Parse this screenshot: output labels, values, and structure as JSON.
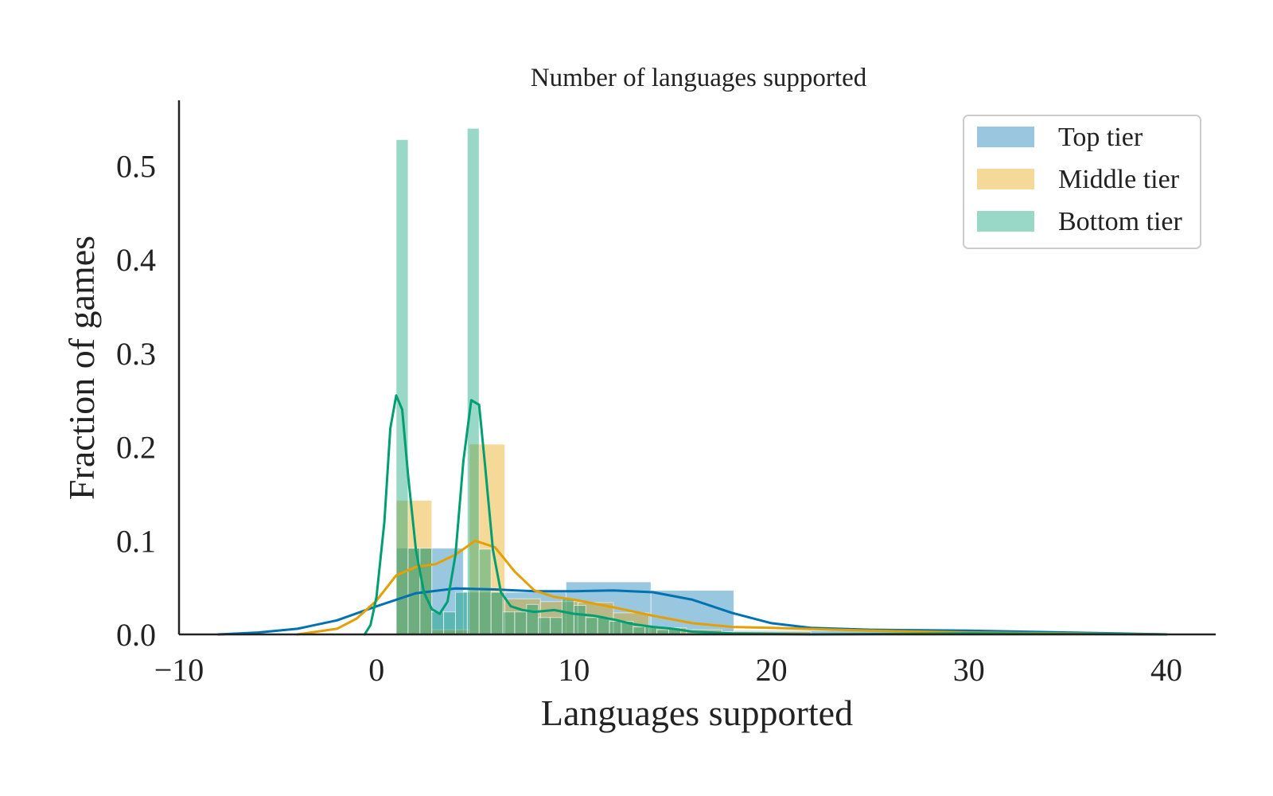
{
  "chart_data": {
    "type": "bar",
    "title": "Number of languages supported",
    "xlabel": "Languages supported",
    "ylabel": "Fraction of games",
    "xlim": [
      -10,
      42.5
    ],
    "ylim": [
      0,
      0.57
    ],
    "xticks": [
      -10,
      0,
      10,
      20,
      30,
      40
    ],
    "xtick_labels": [
      "−10",
      "0",
      "10",
      "20",
      "30",
      "40"
    ],
    "yticks": [
      0.0,
      0.1,
      0.2,
      0.3,
      0.4,
      0.5
    ],
    "ytick_labels": [
      "0.0",
      "0.1",
      "0.2",
      "0.3",
      "0.4",
      "0.5"
    ],
    "grid": false,
    "legend_position": "top-right",
    "series": [
      {
        "name": "Top tier",
        "color": "#0072b2",
        "histogram": [
          {
            "x0": 1.0,
            "x1": 4.4,
            "y": 0.092
          },
          {
            "x0": 4.4,
            "x1": 9.6,
            "y": 0.045
          },
          {
            "x0": 9.6,
            "x1": 13.9,
            "y": 0.056
          },
          {
            "x0": 13.9,
            "x1": 18.1,
            "y": 0.047
          },
          {
            "x0": 18.1,
            "x1": 31.0,
            "y": 0.004
          }
        ],
        "kde": [
          [
            -8,
            0.0
          ],
          [
            -6,
            0.002
          ],
          [
            -4,
            0.006
          ],
          [
            -2,
            0.015
          ],
          [
            0,
            0.03
          ],
          [
            2,
            0.044
          ],
          [
            4,
            0.049
          ],
          [
            6,
            0.048
          ],
          [
            8,
            0.046
          ],
          [
            10,
            0.046
          ],
          [
            12,
            0.047
          ],
          [
            14,
            0.045
          ],
          [
            16,
            0.037
          ],
          [
            18,
            0.023
          ],
          [
            20,
            0.012
          ],
          [
            22,
            0.007
          ],
          [
            25,
            0.005
          ],
          [
            30,
            0.004
          ],
          [
            35,
            0.002
          ],
          [
            40,
            0.0
          ]
        ]
      },
      {
        "name": "Middle tier",
        "color": "#e69f00",
        "histogram": [
          {
            "x0": 1.0,
            "x1": 2.8,
            "y": 0.143
          },
          {
            "x0": 2.8,
            "x1": 4.7,
            "y": 0.005
          },
          {
            "x0": 4.7,
            "x1": 6.5,
            "y": 0.203
          },
          {
            "x0": 6.5,
            "x1": 8.3,
            "y": 0.038
          },
          {
            "x0": 8.3,
            "x1": 10.2,
            "y": 0.035
          },
          {
            "x0": 10.2,
            "x1": 12.0,
            "y": 0.034
          },
          {
            "x0": 12.0,
            "x1": 13.8,
            "y": 0.023
          },
          {
            "x0": 13.8,
            "x1": 15.7,
            "y": 0.007
          },
          {
            "x0": 15.7,
            "x1": 17.5,
            "y": 0.005
          },
          {
            "x0": 17.5,
            "x1": 22.0,
            "y": 0.003
          }
        ],
        "kde": [
          [
            -4,
            0.0
          ],
          [
            -2,
            0.006
          ],
          [
            -1,
            0.017
          ],
          [
            0,
            0.036
          ],
          [
            1,
            0.063
          ],
          [
            2,
            0.072
          ],
          [
            3,
            0.075
          ],
          [
            4,
            0.085
          ],
          [
            5,
            0.1
          ],
          [
            6,
            0.093
          ],
          [
            7,
            0.067
          ],
          [
            8,
            0.047
          ],
          [
            9,
            0.04
          ],
          [
            10,
            0.037
          ],
          [
            12,
            0.029
          ],
          [
            14,
            0.02
          ],
          [
            16,
            0.012
          ],
          [
            18,
            0.008
          ],
          [
            20,
            0.007
          ],
          [
            25,
            0.004
          ],
          [
            30,
            0.002
          ],
          [
            35,
            0.001
          ],
          [
            40,
            0.0
          ]
        ]
      },
      {
        "name": "Bottom tier",
        "color": "#009e73",
        "histogram": [
          {
            "x0": 1.0,
            "x1": 1.6,
            "y": 0.528
          },
          {
            "x0": 1.6,
            "x1": 2.2,
            "y": 0.092
          },
          {
            "x0": 2.2,
            "x1": 2.8,
            "y": 0.092
          },
          {
            "x0": 2.8,
            "x1": 3.4,
            "y": 0.024
          },
          {
            "x0": 3.4,
            "x1": 4.0,
            "y": 0.024
          },
          {
            "x0": 4.0,
            "x1": 4.6,
            "y": 0.045
          },
          {
            "x0": 4.6,
            "x1": 5.2,
            "y": 0.54
          },
          {
            "x0": 5.2,
            "x1": 5.8,
            "y": 0.091
          },
          {
            "x0": 5.8,
            "x1": 6.4,
            "y": 0.045
          },
          {
            "x0": 6.4,
            "x1": 7.0,
            "y": 0.024
          },
          {
            "x0": 7.0,
            "x1": 7.6,
            "y": 0.024
          },
          {
            "x0": 7.6,
            "x1": 8.2,
            "y": 0.032
          },
          {
            "x0": 8.2,
            "x1": 8.8,
            "y": 0.018
          },
          {
            "x0": 8.8,
            "x1": 9.4,
            "y": 0.018
          },
          {
            "x0": 9.4,
            "x1": 10.0,
            "y": 0.038
          },
          {
            "x0": 10.0,
            "x1": 10.6,
            "y": 0.031
          },
          {
            "x0": 10.6,
            "x1": 11.2,
            "y": 0.018
          },
          {
            "x0": 11.2,
            "x1": 11.8,
            "y": 0.018
          },
          {
            "x0": 11.8,
            "x1": 12.4,
            "y": 0.014
          },
          {
            "x0": 12.4,
            "x1": 13.0,
            "y": 0.014
          },
          {
            "x0": 13.0,
            "x1": 13.6,
            "y": 0.008
          },
          {
            "x0": 13.6,
            "x1": 14.2,
            "y": 0.008
          },
          {
            "x0": 14.2,
            "x1": 14.8,
            "y": 0.005
          },
          {
            "x0": 14.8,
            "x1": 15.4,
            "y": 0.007
          }
        ],
        "kde": [
          [
            -0.6,
            0.0
          ],
          [
            -0.3,
            0.01
          ],
          [
            0,
            0.04
          ],
          [
            0.4,
            0.12
          ],
          [
            0.7,
            0.22
          ],
          [
            1.0,
            0.255
          ],
          [
            1.3,
            0.24
          ],
          [
            1.6,
            0.17
          ],
          [
            2.0,
            0.09
          ],
          [
            2.4,
            0.045
          ],
          [
            2.8,
            0.027
          ],
          [
            3.2,
            0.022
          ],
          [
            3.6,
            0.035
          ],
          [
            4.0,
            0.085
          ],
          [
            4.4,
            0.185
          ],
          [
            4.8,
            0.25
          ],
          [
            5.2,
            0.245
          ],
          [
            5.5,
            0.18
          ],
          [
            5.9,
            0.09
          ],
          [
            6.3,
            0.045
          ],
          [
            6.8,
            0.03
          ],
          [
            7.4,
            0.026
          ],
          [
            8.0,
            0.024
          ],
          [
            9.0,
            0.026
          ],
          [
            10.0,
            0.022
          ],
          [
            11.0,
            0.02
          ],
          [
            12.0,
            0.016
          ],
          [
            13.0,
            0.011
          ],
          [
            14.0,
            0.008
          ],
          [
            15.0,
            0.006
          ],
          [
            16.0,
            0.003
          ],
          [
            18.0,
            0.001
          ],
          [
            22.0,
            0.0
          ],
          [
            30.0,
            0.001
          ],
          [
            40.0,
            0.0
          ]
        ]
      }
    ]
  }
}
